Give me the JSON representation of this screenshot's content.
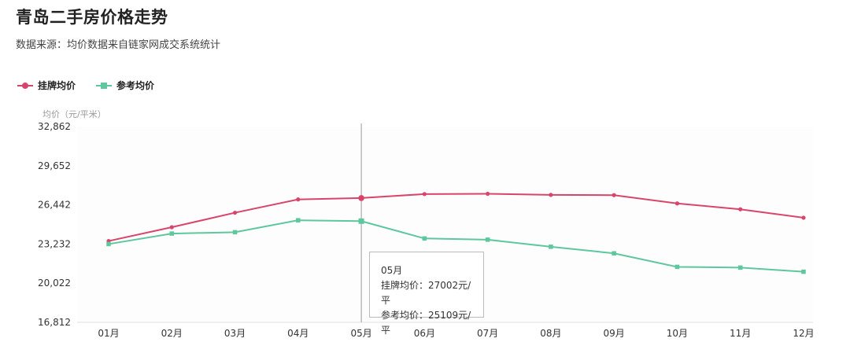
{
  "header": {
    "title": "青岛二手房价格走势",
    "subtitle": "数据来源：均价数据来自链家网成交系统统计"
  },
  "tooltip": {
    "month": "05月",
    "line1": "挂牌均价：27002元/平",
    "line2": "参考均价：25109元/平"
  },
  "chart_data": {
    "type": "line",
    "title": "青岛二手房价格走势",
    "ylabel": "均价（元/平米）",
    "xlabel": "",
    "categories": [
      "01月",
      "02月",
      "03月",
      "04月",
      "05月",
      "06月",
      "07月",
      "08月",
      "09月",
      "10月",
      "11月",
      "12月"
    ],
    "yticks": [
      16812,
      20022,
      23232,
      26442,
      29652,
      32862
    ],
    "ytick_labels": [
      "16,812",
      "20,022",
      "23,232",
      "26,442",
      "29,652",
      "32,862"
    ],
    "ylim": [
      16812,
      32862
    ],
    "grid": false,
    "legend_position": "top-left",
    "highlight_category": "05月",
    "series": [
      {
        "name": "挂牌均价",
        "color": "#d9456a",
        "marker": "circle",
        "values": [
          23480,
          24610,
          25800,
          26890,
          27002,
          27330,
          27350,
          27260,
          27240,
          26560,
          26080,
          25390
        ]
      },
      {
        "name": "参考均价",
        "color": "#5ec79e",
        "marker": "square",
        "values": [
          23230,
          24090,
          24200,
          25180,
          25109,
          23690,
          23590,
          23010,
          22470,
          21360,
          21300,
          20960
        ]
      }
    ]
  }
}
